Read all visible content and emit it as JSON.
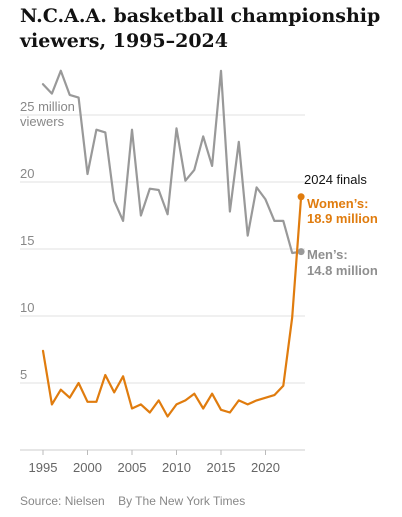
{
  "title": "N.C.A.A. basketball championship viewers, 1995–2024",
  "source": "Source: Nielsen",
  "credit": "By The New York Times",
  "chart_data": {
    "type": "line",
    "title": "N.C.A.A. basketball championship viewers, 1995–2024",
    "xlim": [
      1994,
      2025
    ],
    "ylim": [
      0,
      30
    ],
    "x_ticks": [
      1995,
      2000,
      2005,
      2010,
      2015,
      2020
    ],
    "y_ticks": [
      {
        "value": 5,
        "label": "5"
      },
      {
        "value": 10,
        "label": "10"
      },
      {
        "value": 15,
        "label": "15"
      },
      {
        "value": 20,
        "label": "20"
      },
      {
        "value": 25,
        "label": "25 million",
        "label2": "viewers"
      }
    ],
    "grid": true,
    "annotation": "2024 finals",
    "series": [
      {
        "name": "Men’s",
        "color": "#999999",
        "end_label_name": "Men’s:",
        "end_label_value": "14.8 million",
        "x": [
          1995,
          1996,
          1997,
          1998,
          1999,
          2000,
          2001,
          2002,
          2003,
          2004,
          2005,
          2006,
          2007,
          2008,
          2009,
          2010,
          2011,
          2012,
          2013,
          2014,
          2015,
          2016,
          2017,
          2018,
          2019,
          2020,
          2021,
          2022,
          2023,
          2024
        ],
        "y": [
          27.3,
          26.6,
          28.3,
          26.5,
          26.3,
          20.6,
          23.9,
          23.7,
          18.6,
          17.1,
          23.9,
          17.5,
          19.5,
          19.4,
          17.6,
          24.0,
          20.1,
          20.9,
          23.4,
          21.2,
          28.3,
          17.8,
          23.0,
          16.0,
          19.6,
          18.7,
          17.1,
          17.1,
          14.7,
          14.8
        ]
      },
      {
        "name": "Women’s",
        "color": "#E07C0E",
        "end_label_name": "Women’s:",
        "end_label_value": "18.9 million",
        "x": [
          1995,
          1996,
          1997,
          1998,
          1999,
          2000,
          2001,
          2002,
          2003,
          2004,
          2005,
          2006,
          2007,
          2008,
          2009,
          2010,
          2011,
          2012,
          2013,
          2014,
          2015,
          2016,
          2017,
          2018,
          2019,
          2020,
          2021,
          2022,
          2023,
          2024
        ],
        "y": [
          7.4,
          3.4,
          4.5,
          3.9,
          5.0,
          3.6,
          3.6,
          5.6,
          4.3,
          5.5,
          3.1,
          3.4,
          2.8,
          3.7,
          2.5,
          3.4,
          3.7,
          4.2,
          3.1,
          4.2,
          3.0,
          2.8,
          3.7,
          3.4,
          3.7,
          null,
          4.1,
          4.8,
          9.9,
          18.9
        ]
      }
    ]
  }
}
